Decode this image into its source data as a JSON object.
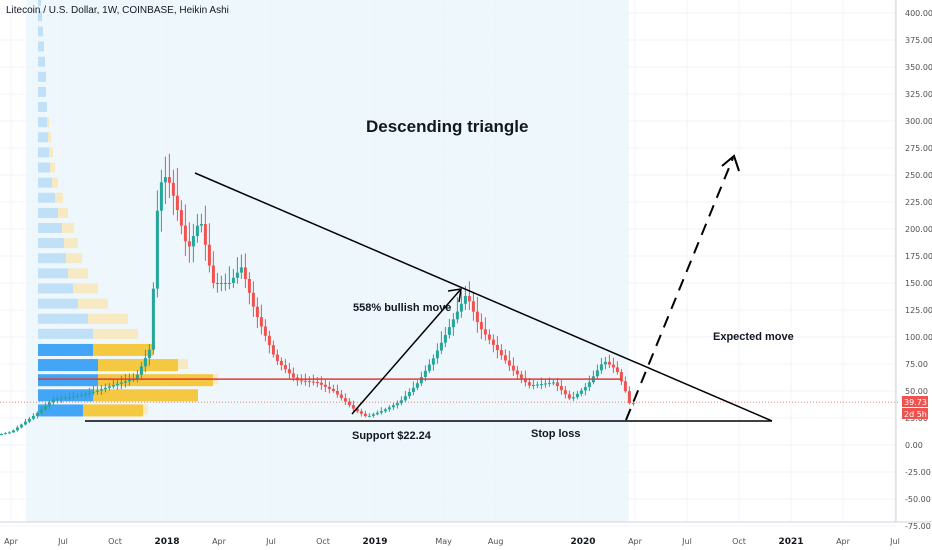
{
  "header": {
    "title": "Litecoin / U.S. Dollar, 1W, COINBASE, Heikin Ashi"
  },
  "annotations": {
    "title": "Descending triangle",
    "bullish": "558% bullish move",
    "expected": "Expected move",
    "support": "Support $22.24",
    "stoploss": "Stop loss"
  },
  "badges": {
    "price": "39.73",
    "countdown": "2d 5h"
  },
  "colors": {
    "up": "#26a69a",
    "down": "#ef5350",
    "bg_shade": "#eef7fc",
    "resistance": "#e53935",
    "vp_up": "#42a5f5",
    "vp_down": "#f5c842"
  },
  "chart_data": {
    "type": "candlestick",
    "subtype": "Heikin Ashi",
    "symbol": "LTCUSD",
    "interval": "1W",
    "exchange": "COINBASE",
    "y_ticks": [
      "400.00",
      "375.00",
      "350.00",
      "325.00",
      "300.00",
      "275.00",
      "250.00",
      "225.00",
      "200.00",
      "175.00",
      "150.00",
      "125.00",
      "100.00",
      "75.00",
      "50.00",
      "25.00",
      "0.00",
      "-25.00",
      "-50.00",
      "-75.00"
    ],
    "ylim": [
      -75,
      410
    ],
    "x_ticks": [
      {
        "label": "Apr",
        "t": 2017.25
      },
      {
        "label": "Jul",
        "t": 2017.5
      },
      {
        "label": "Oct",
        "t": 2017.75
      },
      {
        "label": "2018",
        "t": 2018.0,
        "year": true
      },
      {
        "label": "Apr",
        "t": 2018.25
      },
      {
        "label": "Jul",
        "t": 2018.5
      },
      {
        "label": "Oct",
        "t": 2018.75
      },
      {
        "label": "2019",
        "t": 2019.0,
        "year": true
      },
      {
        "label": "May",
        "t": 2019.33
      },
      {
        "label": "Aug",
        "t": 2019.58
      },
      {
        "label": "2020",
        "t": 2020.0,
        "year": true
      },
      {
        "label": "Apr",
        "t": 2020.25
      },
      {
        "label": "Jul",
        "t": 2020.5
      },
      {
        "label": "Oct",
        "t": 2020.75
      },
      {
        "label": "2021",
        "t": 2021.0,
        "year": true
      },
      {
        "label": "Apr",
        "t": 2021.25
      },
      {
        "label": "Jul",
        "t": 2021.5
      }
    ],
    "anchors": [
      {
        "t": 2017.05,
        "p": 4
      },
      {
        "t": 2017.25,
        "p": 12
      },
      {
        "t": 2017.38,
        "p": 30
      },
      {
        "t": 2017.45,
        "p": 42
      },
      {
        "t": 2017.58,
        "p": 46
      },
      {
        "t": 2017.66,
        "p": 50
      },
      {
        "t": 2017.75,
        "p": 56
      },
      {
        "t": 2017.85,
        "p": 62
      },
      {
        "t": 2017.92,
        "p": 90
      },
      {
        "t": 2017.96,
        "p": 240
      },
      {
        "t": 2018.0,
        "p": 250
      },
      {
        "t": 2018.04,
        "p": 225
      },
      {
        "t": 2018.1,
        "p": 180
      },
      {
        "t": 2018.16,
        "p": 210
      },
      {
        "t": 2018.22,
        "p": 150
      },
      {
        "t": 2018.3,
        "p": 150
      },
      {
        "t": 2018.36,
        "p": 165
      },
      {
        "t": 2018.42,
        "p": 125
      },
      {
        "t": 2018.52,
        "p": 80
      },
      {
        "t": 2018.62,
        "p": 60
      },
      {
        "t": 2018.72,
        "p": 58
      },
      {
        "t": 2018.8,
        "p": 50
      },
      {
        "t": 2018.9,
        "p": 33
      },
      {
        "t": 2018.96,
        "p": 26
      },
      {
        "t": 2019.04,
        "p": 32
      },
      {
        "t": 2019.12,
        "p": 40
      },
      {
        "t": 2019.2,
        "p": 56
      },
      {
        "t": 2019.28,
        "p": 80
      },
      {
        "t": 2019.36,
        "p": 110
      },
      {
        "t": 2019.44,
        "p": 140
      },
      {
        "t": 2019.5,
        "p": 110
      },
      {
        "t": 2019.56,
        "p": 95
      },
      {
        "t": 2019.66,
        "p": 70
      },
      {
        "t": 2019.74,
        "p": 55
      },
      {
        "t": 2019.86,
        "p": 58
      },
      {
        "t": 2019.94,
        "p": 42
      },
      {
        "t": 2020.02,
        "p": 55
      },
      {
        "t": 2020.1,
        "p": 78
      },
      {
        "t": 2020.16,
        "p": 70
      },
      {
        "t": 2020.2,
        "p": 52
      },
      {
        "t": 2020.23,
        "p": 35
      },
      {
        "t": 2020.25,
        "p": 40
      }
    ],
    "resistance_level": 61,
    "support_level": 22.24,
    "current_price": 39.73
  }
}
